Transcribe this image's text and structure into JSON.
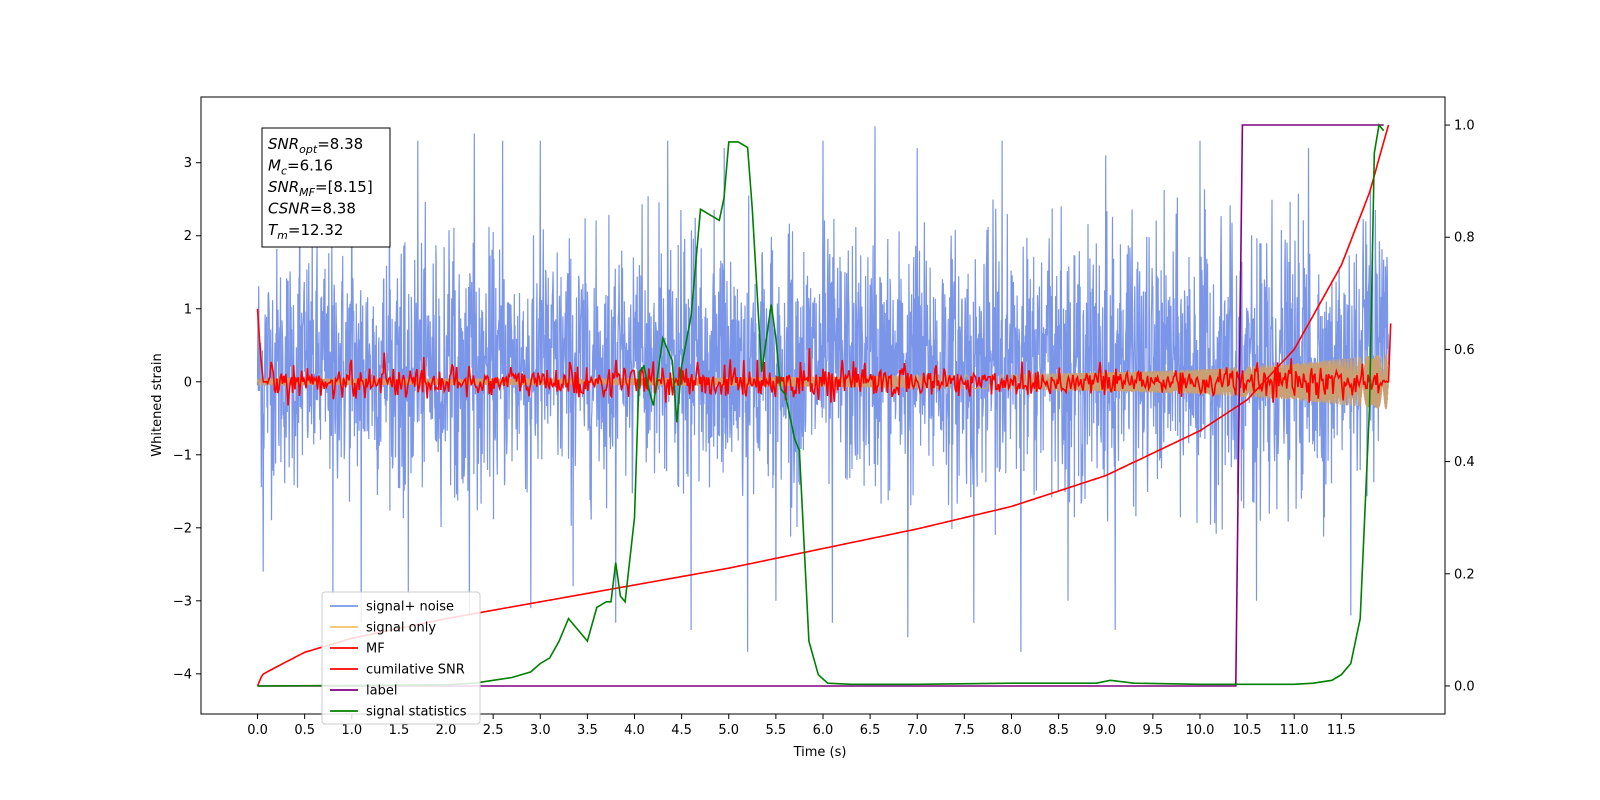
{
  "chart_data": {
    "type": "line",
    "title": "",
    "xlabel": "Time (s)",
    "ylabel": "Whitened strain",
    "xlim": [
      -0.6,
      12.6
    ],
    "ylim": [
      -4.55,
      3.9
    ],
    "ylim_right": [
      -0.05,
      1.05
    ],
    "x_ticks": [
      "0.0",
      "0.5",
      "1.0",
      "1.5",
      "2.0",
      "2.5",
      "3.0",
      "3.5",
      "4.0",
      "4.5",
      "5.0",
      "5.5",
      "6.0",
      "6.5",
      "7.0",
      "7.5",
      "8.0",
      "8.5",
      "9.0",
      "9.5",
      "10.0",
      "10.5",
      "11.0",
      "11.5"
    ],
    "y_ticks": [
      "3",
      "2",
      "1",
      "0",
      "−1",
      "−2",
      "−3",
      "−4"
    ],
    "y_ticks_right": [
      "1.0",
      "0.8",
      "0.6",
      "0.4",
      "0.2",
      "0.0"
    ],
    "grid": false,
    "legend_position": "lower-left",
    "annotation": {
      "lines": [
        {
          "sym": "SNR",
          "sub": "opt",
          "value": "=8.38"
        },
        {
          "sym": "M",
          "sub": "c",
          "value": "=6.16"
        },
        {
          "sym": "SNR",
          "sub": "MF",
          "value": "=[8.15]"
        },
        {
          "sym": "CSNR",
          "sub": "",
          "value": "=8.38"
        },
        {
          "sym": "T",
          "sub": "m",
          "value": "=12.32"
        }
      ]
    },
    "series": [
      {
        "name": "signal+ noise",
        "color": "#7b96e8",
        "axis": "left",
        "envelope": {
          "x": [
            0.0,
            11.5,
            12.0
          ],
          "upper": [
            2.3,
            2.6,
            2.5
          ],
          "lower": [
            -1.9,
            -2.1,
            -1.8
          ]
        },
        "peaks": [
          [
            0.06,
            2.4
          ],
          [
            0.45,
            2.9
          ],
          [
            1.0,
            3.2
          ],
          [
            1.4,
            3.1
          ],
          [
            1.7,
            3.3
          ],
          [
            2.3,
            3.4
          ],
          [
            2.6,
            3.3
          ],
          [
            3.0,
            3.3
          ],
          [
            4.35,
            3.3
          ],
          [
            4.95,
            3.2
          ],
          [
            6.0,
            3.3
          ],
          [
            6.55,
            3.5
          ],
          [
            7.0,
            3.2
          ],
          [
            7.9,
            3.3
          ],
          [
            9.0,
            3.1
          ],
          [
            10.0,
            3.3
          ],
          [
            11.15,
            3.2
          ],
          [
            11.6,
            3.1
          ]
        ],
        "troughs": [
          [
            0.06,
            -2.6
          ],
          [
            0.8,
            -2.9
          ],
          [
            1.1,
            -3.3
          ],
          [
            1.6,
            -2.9
          ],
          [
            2.25,
            -3.2
          ],
          [
            2.9,
            -3.1
          ],
          [
            3.35,
            -2.8
          ],
          [
            3.8,
            -3.3
          ],
          [
            4.6,
            -3.4
          ],
          [
            5.2,
            -3.7
          ],
          [
            5.5,
            -3.0
          ],
          [
            6.1,
            -3.3
          ],
          [
            6.9,
            -3.5
          ],
          [
            7.6,
            -3.3
          ],
          [
            8.1,
            -3.7
          ],
          [
            8.6,
            -3.0
          ],
          [
            9.1,
            -3.4
          ],
          [
            10.6,
            -3.0
          ],
          [
            11.6,
            -3.2
          ]
        ]
      },
      {
        "name": "signal only",
        "color": "#f5c36b",
        "axis": "left",
        "amplitude": {
          "x": [
            0.0,
            2.0,
            4.0,
            6.0,
            8.0,
            9.0,
            10.0,
            11.0,
            12.0
          ],
          "y": [
            0.04,
            0.045,
            0.05,
            0.07,
            0.1,
            0.13,
            0.17,
            0.25,
            0.38
          ]
        }
      },
      {
        "name": "MF",
        "color": "#ff0000",
        "axis": "left",
        "x": [
          0.0,
          0.03,
          0.06,
          0.12,
          12.0,
          12.03
        ],
        "y": [
          1.0,
          0.4,
          0.0,
          0.0,
          0.0,
          1.0
        ],
        "noise_amplitude": 0.12,
        "spikes": [
          [
            1.0,
            0.3
          ],
          [
            1.35,
            0.4
          ],
          [
            3.8,
            0.3
          ],
          [
            4.2,
            0.28
          ],
          [
            5.3,
            0.3
          ],
          [
            5.85,
            0.46
          ],
          [
            6.2,
            0.3
          ]
        ]
      },
      {
        "name": "cumilative SNR",
        "color": "#ff0000",
        "axis": "right",
        "x": [
          0.0,
          0.05,
          0.1,
          0.5,
          1.0,
          2.0,
          3.0,
          4.0,
          5.0,
          6.0,
          7.0,
          8.0,
          9.0,
          10.0,
          10.5,
          11.0,
          11.5,
          11.8,
          12.0
        ],
        "y": [
          0.0,
          0.02,
          0.025,
          0.06,
          0.085,
          0.12,
          0.15,
          0.18,
          0.21,
          0.245,
          0.28,
          0.32,
          0.375,
          0.455,
          0.51,
          0.6,
          0.75,
          0.88,
          1.0
        ]
      },
      {
        "name": "label",
        "color": "#800080",
        "axis": "right",
        "x": [
          0.0,
          10.38,
          10.45,
          11.95
        ],
        "y": [
          0.0,
          0.0,
          1.0,
          1.0
        ]
      },
      {
        "name": "signal statistics",
        "color": "#008000",
        "axis": "right",
        "x": [
          0.0,
          1.0,
          2.0,
          2.3,
          2.5,
          2.7,
          2.9,
          3.0,
          3.1,
          3.2,
          3.3,
          3.4,
          3.5,
          3.6,
          3.7,
          3.75,
          3.8,
          3.85,
          3.9,
          4.0,
          4.05,
          4.1,
          4.15,
          4.2,
          4.3,
          4.4,
          4.45,
          4.5,
          4.6,
          4.7,
          4.8,
          4.9,
          4.95,
          5.0,
          5.1,
          5.2,
          5.25,
          5.35,
          5.45,
          5.5,
          5.55,
          5.6,
          5.7,
          5.75,
          5.85,
          5.95,
          6.05,
          6.3,
          7.0,
          8.0,
          8.5,
          8.9,
          9.05,
          9.3,
          10.0,
          11.0,
          11.2,
          11.4,
          11.5,
          11.6,
          11.7,
          11.8,
          11.85,
          11.9,
          11.95
        ],
        "y": [
          0.0,
          0.001,
          0.002,
          0.005,
          0.01,
          0.015,
          0.025,
          0.04,
          0.05,
          0.08,
          0.12,
          0.1,
          0.08,
          0.14,
          0.15,
          0.15,
          0.22,
          0.16,
          0.15,
          0.3,
          0.56,
          0.57,
          0.53,
          0.5,
          0.62,
          0.58,
          0.47,
          0.57,
          0.66,
          0.85,
          0.84,
          0.83,
          0.87,
          0.97,
          0.97,
          0.96,
          0.85,
          0.56,
          0.68,
          0.62,
          0.53,
          0.52,
          0.44,
          0.42,
          0.08,
          0.02,
          0.005,
          0.003,
          0.003,
          0.005,
          0.005,
          0.005,
          0.01,
          0.005,
          0.003,
          0.003,
          0.005,
          0.01,
          0.02,
          0.04,
          0.12,
          0.5,
          0.95,
          1.0,
          0.99
        ]
      }
    ]
  }
}
